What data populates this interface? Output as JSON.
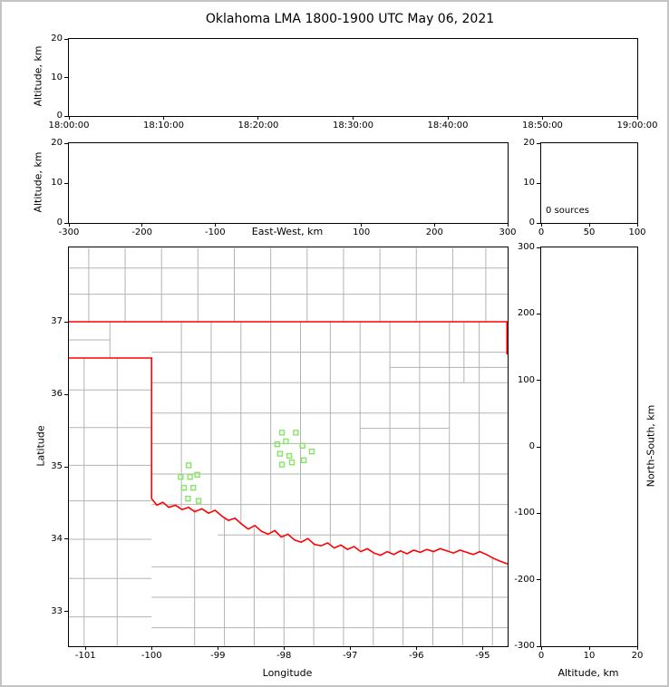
{
  "title": "Oklahoma LMA 1800-1900 UTC May 06, 2021",
  "colors": {
    "axis": "#000000",
    "county_line": "#b3b3b3",
    "state_border": "#ff0000",
    "station": "#86e564",
    "frame": "#c4c4c4"
  },
  "chart_data": [
    {
      "type": "scatter",
      "name": "time-altitude",
      "ylabel": "Altitude, km",
      "ylim": [
        0,
        20
      ],
      "xlim_labels": [
        "18:00:00",
        "19:00:00"
      ],
      "xticks": [
        {
          "label": "18:00:00",
          "f": 0
        },
        {
          "label": "18:10:00",
          "f": 0.1667
        },
        {
          "label": "18:20:00",
          "f": 0.3333
        },
        {
          "label": "18:30:00",
          "f": 0.5
        },
        {
          "label": "18:40:00",
          "f": 0.6667
        },
        {
          "label": "18:50:00",
          "f": 0.8333
        },
        {
          "label": "19:00:00",
          "f": 1
        }
      ],
      "yticks": [
        {
          "label": "0",
          "f": 0
        },
        {
          "label": "10",
          "f": 0.5
        },
        {
          "label": "20",
          "f": 1
        }
      ],
      "points": []
    },
    {
      "type": "scatter",
      "name": "eastwest-altitude",
      "xlabel": "East-West, km",
      "ylabel": "Altitude, km",
      "xlim": [
        -300,
        300
      ],
      "ylim": [
        0,
        20
      ],
      "xticks": [
        {
          "label": "-300",
          "f": 0
        },
        {
          "label": "-200",
          "f": 0.1667
        },
        {
          "label": "-100",
          "f": 0.3333
        },
        {
          "label": "100",
          "f": 0.6667
        },
        {
          "label": "200",
          "f": 0.8333
        },
        {
          "label": "300",
          "f": 1
        }
      ],
      "yticks": [
        {
          "label": "0",
          "f": 0
        },
        {
          "label": "10",
          "f": 0.5
        },
        {
          "label": "20",
          "f": 1
        }
      ],
      "points": []
    },
    {
      "type": "histogram",
      "name": "altitude-histogram",
      "annotation": "0 sources",
      "xlim": [
        0,
        100
      ],
      "ylim": [
        0,
        20
      ],
      "xticks": [
        {
          "label": "0",
          "f": 0
        },
        {
          "label": "50",
          "f": 0.5
        },
        {
          "label": "100",
          "f": 1
        }
      ],
      "yticks": [
        {
          "label": "0",
          "f": 0
        },
        {
          "label": "10",
          "f": 0.5
        },
        {
          "label": "20",
          "f": 1
        }
      ],
      "values": []
    },
    {
      "type": "map",
      "name": "plan-view",
      "xlabel": "Longitude",
      "ylabel": "Latitude",
      "xlim": [
        -101.25,
        -94.62
      ],
      "ylim": [
        32.525,
        38.025
      ],
      "xticks": [
        {
          "label": "-101",
          "f": 0.0377
        },
        {
          "label": "-100",
          "f": 0.1886
        },
        {
          "label": "-99",
          "f": 0.3394
        },
        {
          "label": "-98",
          "f": 0.4902
        },
        {
          "label": "-97",
          "f": 0.641
        },
        {
          "label": "-96",
          "f": 0.7919
        },
        {
          "label": "-95",
          "f": 0.9427
        }
      ],
      "yticks": [
        {
          "label": "33",
          "f": 0.0864
        },
        {
          "label": "34",
          "f": 0.2682
        },
        {
          "label": "35",
          "f": 0.45
        },
        {
          "label": "36",
          "f": 0.6318
        },
        {
          "label": "37",
          "f": 0.8136
        }
      ],
      "stations": [
        [
          -99.44,
          35.02
        ],
        [
          -99.56,
          34.86
        ],
        [
          -99.42,
          34.86
        ],
        [
          -99.31,
          34.89
        ],
        [
          -99.51,
          34.71
        ],
        [
          -99.37,
          34.71
        ],
        [
          -99.45,
          34.56
        ],
        [
          -99.29,
          34.53
        ],
        [
          -98.03,
          35.47
        ],
        [
          -97.82,
          35.47
        ],
        [
          -98.1,
          35.31
        ],
        [
          -97.97,
          35.35
        ],
        [
          -97.72,
          35.29
        ],
        [
          -97.58,
          35.21
        ],
        [
          -98.06,
          35.18
        ],
        [
          -97.92,
          35.15
        ],
        [
          -98.03,
          35.03
        ],
        [
          -97.88,
          35.06
        ],
        [
          -97.7,
          35.09
        ]
      ],
      "county_segments": [
        [
          -100.95,
          37.0,
          -100.95,
          38.02
        ],
        [
          -100.4,
          37.0,
          -100.4,
          38.02
        ],
        [
          -99.85,
          37.0,
          -99.85,
          38.02
        ],
        [
          -99.3,
          37.0,
          -99.3,
          38.02
        ],
        [
          -98.75,
          37.0,
          -98.75,
          38.02
        ],
        [
          -98.2,
          37.0,
          -98.2,
          38.02
        ],
        [
          -97.65,
          37.0,
          -97.65,
          38.02
        ],
        [
          -97.1,
          37.0,
          -97.1,
          38.02
        ],
        [
          -96.55,
          37.0,
          -96.55,
          38.02
        ],
        [
          -96.0,
          37.0,
          -96.0,
          38.02
        ],
        [
          -95.45,
          37.0,
          -95.45,
          38.02
        ],
        [
          -94.95,
          37.0,
          -94.95,
          38.02
        ],
        [
          -101.25,
          37.74,
          -94.62,
          37.74
        ],
        [
          -101.25,
          37.38,
          -94.62,
          37.38
        ],
        [
          -100.63,
          36.5,
          -100.63,
          37.0
        ],
        [
          -101.25,
          36.75,
          -100.63,
          36.75
        ],
        [
          -101.02,
          32.53,
          -101.02,
          36.5
        ],
        [
          -100.52,
          32.53,
          -100.52,
          36.5
        ],
        [
          -101.25,
          36.06,
          -100.0,
          36.06
        ],
        [
          -101.25,
          35.54,
          -100.0,
          35.54
        ],
        [
          -101.25,
          35.02,
          -100.0,
          35.02
        ],
        [
          -101.25,
          34.53,
          -100.0,
          34.53
        ],
        [
          -101.25,
          34.0,
          -100.0,
          34.0
        ],
        [
          -101.25,
          33.46,
          -100.0,
          33.46
        ],
        [
          -101.25,
          32.93,
          -100.0,
          32.93
        ],
        [
          -99.55,
          34.45,
          -99.55,
          37.0
        ],
        [
          -99.1,
          34.4,
          -99.1,
          37.0
        ],
        [
          -98.65,
          34.2,
          -98.65,
          37.0
        ],
        [
          -98.2,
          34.1,
          -98.2,
          37.0
        ],
        [
          -97.75,
          34.0,
          -97.75,
          37.0
        ],
        [
          -97.3,
          33.92,
          -97.3,
          37.0
        ],
        [
          -96.85,
          33.86,
          -96.85,
          37.0
        ],
        [
          -96.4,
          33.82,
          -96.4,
          37.0
        ],
        [
          -95.95,
          33.84,
          -95.95,
          37.0
        ],
        [
          -95.5,
          33.83,
          -95.5,
          37.0
        ],
        [
          -95.05,
          33.82,
          -95.05,
          37.0
        ],
        [
          -99.35,
          32.53,
          -99.35,
          34.42
        ],
        [
          -98.9,
          32.53,
          -98.9,
          34.3
        ],
        [
          -98.45,
          32.53,
          -98.45,
          34.16
        ],
        [
          -98.0,
          32.53,
          -98.0,
          34.05
        ],
        [
          -97.55,
          32.53,
          -97.55,
          33.95
        ],
        [
          -97.1,
          32.53,
          -97.1,
          33.89
        ],
        [
          -96.65,
          32.53,
          -96.65,
          33.81
        ],
        [
          -96.2,
          32.53,
          -96.2,
          33.82
        ],
        [
          -95.75,
          32.53,
          -95.75,
          33.85
        ],
        [
          -95.3,
          32.53,
          -95.3,
          33.84
        ],
        [
          -94.85,
          32.53,
          -94.85,
          33.76
        ],
        [
          -100.0,
          36.58,
          -94.62,
          36.58
        ],
        [
          -100.0,
          36.16,
          -94.62,
          36.16
        ],
        [
          -100.0,
          35.74,
          -94.62,
          35.74
        ],
        [
          -100.0,
          35.32,
          -94.62,
          35.32
        ],
        [
          -100.0,
          34.9,
          -94.62,
          34.9
        ],
        [
          -100.0,
          34.48,
          -94.62,
          34.48
        ],
        [
          -99.0,
          34.06,
          -94.62,
          34.06
        ],
        [
          -100.0,
          33.62,
          -94.62,
          33.62
        ],
        [
          -100.0,
          33.2,
          -94.62,
          33.2
        ],
        [
          -100.0,
          32.78,
          -94.62,
          32.78
        ],
        [
          -96.4,
          36.37,
          -94.62,
          36.37
        ],
        [
          -95.28,
          36.16,
          -95.28,
          36.99
        ],
        [
          -96.85,
          35.53,
          -95.5,
          35.53
        ]
      ],
      "borders": [
        {
          "name": "kansas-border",
          "points": [
            [
              -101.25,
              37.0
            ],
            [
              -94.62,
              37.0
            ]
          ]
        },
        {
          "name": "panhandle-texas-border",
          "points": [
            [
              -101.25,
              36.5
            ],
            [
              -100.0,
              36.5
            ],
            [
              -100.0,
              34.56
            ]
          ]
        },
        {
          "name": "missouri-border",
          "points": [
            [
              -94.63,
              37.0
            ],
            [
              -94.63,
              36.55
            ]
          ]
        },
        {
          "name": "red-river-border",
          "points": [
            [
              -100.0,
              34.56
            ],
            [
              -99.92,
              34.47
            ],
            [
              -99.83,
              34.51
            ],
            [
              -99.74,
              34.44
            ],
            [
              -99.64,
              34.47
            ],
            [
              -99.54,
              34.41
            ],
            [
              -99.44,
              34.44
            ],
            [
              -99.35,
              34.38
            ],
            [
              -99.24,
              34.42
            ],
            [
              -99.14,
              34.36
            ],
            [
              -99.04,
              34.4
            ],
            [
              -98.94,
              34.32
            ],
            [
              -98.84,
              34.26
            ],
            [
              -98.74,
              34.29
            ],
            [
              -98.64,
              34.21
            ],
            [
              -98.54,
              34.14
            ],
            [
              -98.44,
              34.19
            ],
            [
              -98.34,
              34.11
            ],
            [
              -98.24,
              34.07
            ],
            [
              -98.14,
              34.12
            ],
            [
              -98.04,
              34.03
            ],
            [
              -97.94,
              34.07
            ],
            [
              -97.84,
              33.99
            ],
            [
              -97.74,
              33.96
            ],
            [
              -97.64,
              34.01
            ],
            [
              -97.54,
              33.93
            ],
            [
              -97.44,
              33.91
            ],
            [
              -97.34,
              33.95
            ],
            [
              -97.24,
              33.88
            ],
            [
              -97.14,
              33.92
            ],
            [
              -97.04,
              33.86
            ],
            [
              -96.94,
              33.9
            ],
            [
              -96.84,
              33.83
            ],
            [
              -96.74,
              33.87
            ],
            [
              -96.64,
              33.81
            ],
            [
              -96.54,
              33.78
            ],
            [
              -96.44,
              33.83
            ],
            [
              -96.34,
              33.79
            ],
            [
              -96.24,
              33.84
            ],
            [
              -96.14,
              33.8
            ],
            [
              -96.04,
              33.85
            ],
            [
              -95.94,
              33.82
            ],
            [
              -95.84,
              33.86
            ],
            [
              -95.74,
              33.83
            ],
            [
              -95.64,
              33.87
            ],
            [
              -95.54,
              33.84
            ],
            [
              -95.44,
              33.81
            ],
            [
              -95.34,
              33.85
            ],
            [
              -95.24,
              33.82
            ],
            [
              -95.14,
              33.79
            ],
            [
              -95.04,
              33.83
            ],
            [
              -94.94,
              33.79
            ],
            [
              -94.84,
              33.74
            ],
            [
              -94.74,
              33.7
            ],
            [
              -94.62,
              33.66
            ]
          ]
        }
      ]
    },
    {
      "type": "scatter",
      "name": "altitude-northsouth",
      "xlabel": "Altitude, km",
      "ylabel": "North-South, km",
      "xlim": [
        0,
        20
      ],
      "ylim": [
        -300,
        300
      ],
      "xticks": [
        {
          "label": "0",
          "f": 0
        },
        {
          "label": "10",
          "f": 0.5
        },
        {
          "label": "20",
          "f": 1
        }
      ],
      "yticks": [
        {
          "label": "-300",
          "f": 0
        },
        {
          "label": "-200",
          "f": 0.1667
        },
        {
          "label": "-100",
          "f": 0.3333
        },
        {
          "label": "0",
          "f": 0.5
        },
        {
          "label": "100",
          "f": 0.6667
        },
        {
          "label": "200",
          "f": 0.8333
        },
        {
          "label": "300",
          "f": 1
        }
      ],
      "points": []
    }
  ]
}
